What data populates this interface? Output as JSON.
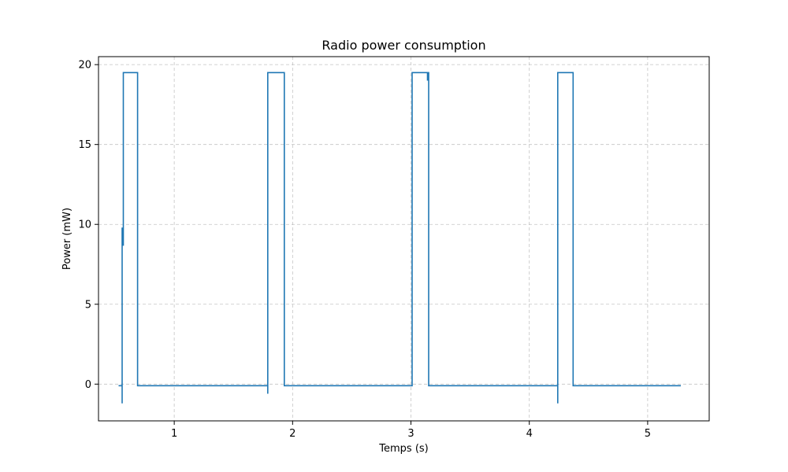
{
  "chart_data": {
    "type": "line",
    "title": "Radio power consumption",
    "xlabel": "Temps (s)",
    "ylabel": "Power (mW)",
    "xlim": [
      0.36,
      5.52
    ],
    "ylim": [
      -2.3,
      20.5
    ],
    "xticks": [
      1,
      2,
      3,
      4,
      5
    ],
    "xtick_labels": [
      "1",
      "2",
      "3",
      "4",
      "5"
    ],
    "yticks": [
      0,
      5,
      10,
      15,
      20
    ],
    "ytick_labels": [
      "0",
      "5",
      "10",
      "15",
      "20"
    ],
    "grid": true,
    "legend": "none",
    "colors": {
      "series": "#1f77b4"
    },
    "series": [
      {
        "x": [
          0.53,
          0.56,
          0.56,
          0.56,
          0.56,
          0.56,
          0.56,
          0.57,
          0.57,
          0.57,
          0.57,
          0.69,
          0.69,
          1.79,
          1.79,
          1.79,
          1.79,
          1.79,
          1.79,
          1.79,
          1.93,
          1.93,
          3.01,
          3.01,
          3.01,
          3.01,
          3.01,
          3.14,
          3.14,
          3.14,
          3.15,
          3.15,
          4.24,
          4.24,
          4.24,
          4.24,
          4.24,
          4.24,
          4.24,
          4.37,
          4.37,
          5.28
        ],
        "y": [
          -0.1,
          -0.1,
          -1.2,
          -0.1,
          8.7,
          9.8,
          8.7,
          8.7,
          19.5,
          19.5,
          19.5,
          19.5,
          -0.1,
          -0.1,
          -0.6,
          -0.1,
          7.5,
          9.1,
          7.5,
          19.5,
          19.5,
          -0.1,
          -0.1,
          9.1,
          11.8,
          9.1,
          19.5,
          19.5,
          19.0,
          19.5,
          19.5,
          -0.1,
          -0.1,
          -1.2,
          0.4,
          -0.1,
          8.6,
          10.2,
          19.5,
          19.5,
          -0.1,
          -0.1
        ]
      }
    ]
  }
}
